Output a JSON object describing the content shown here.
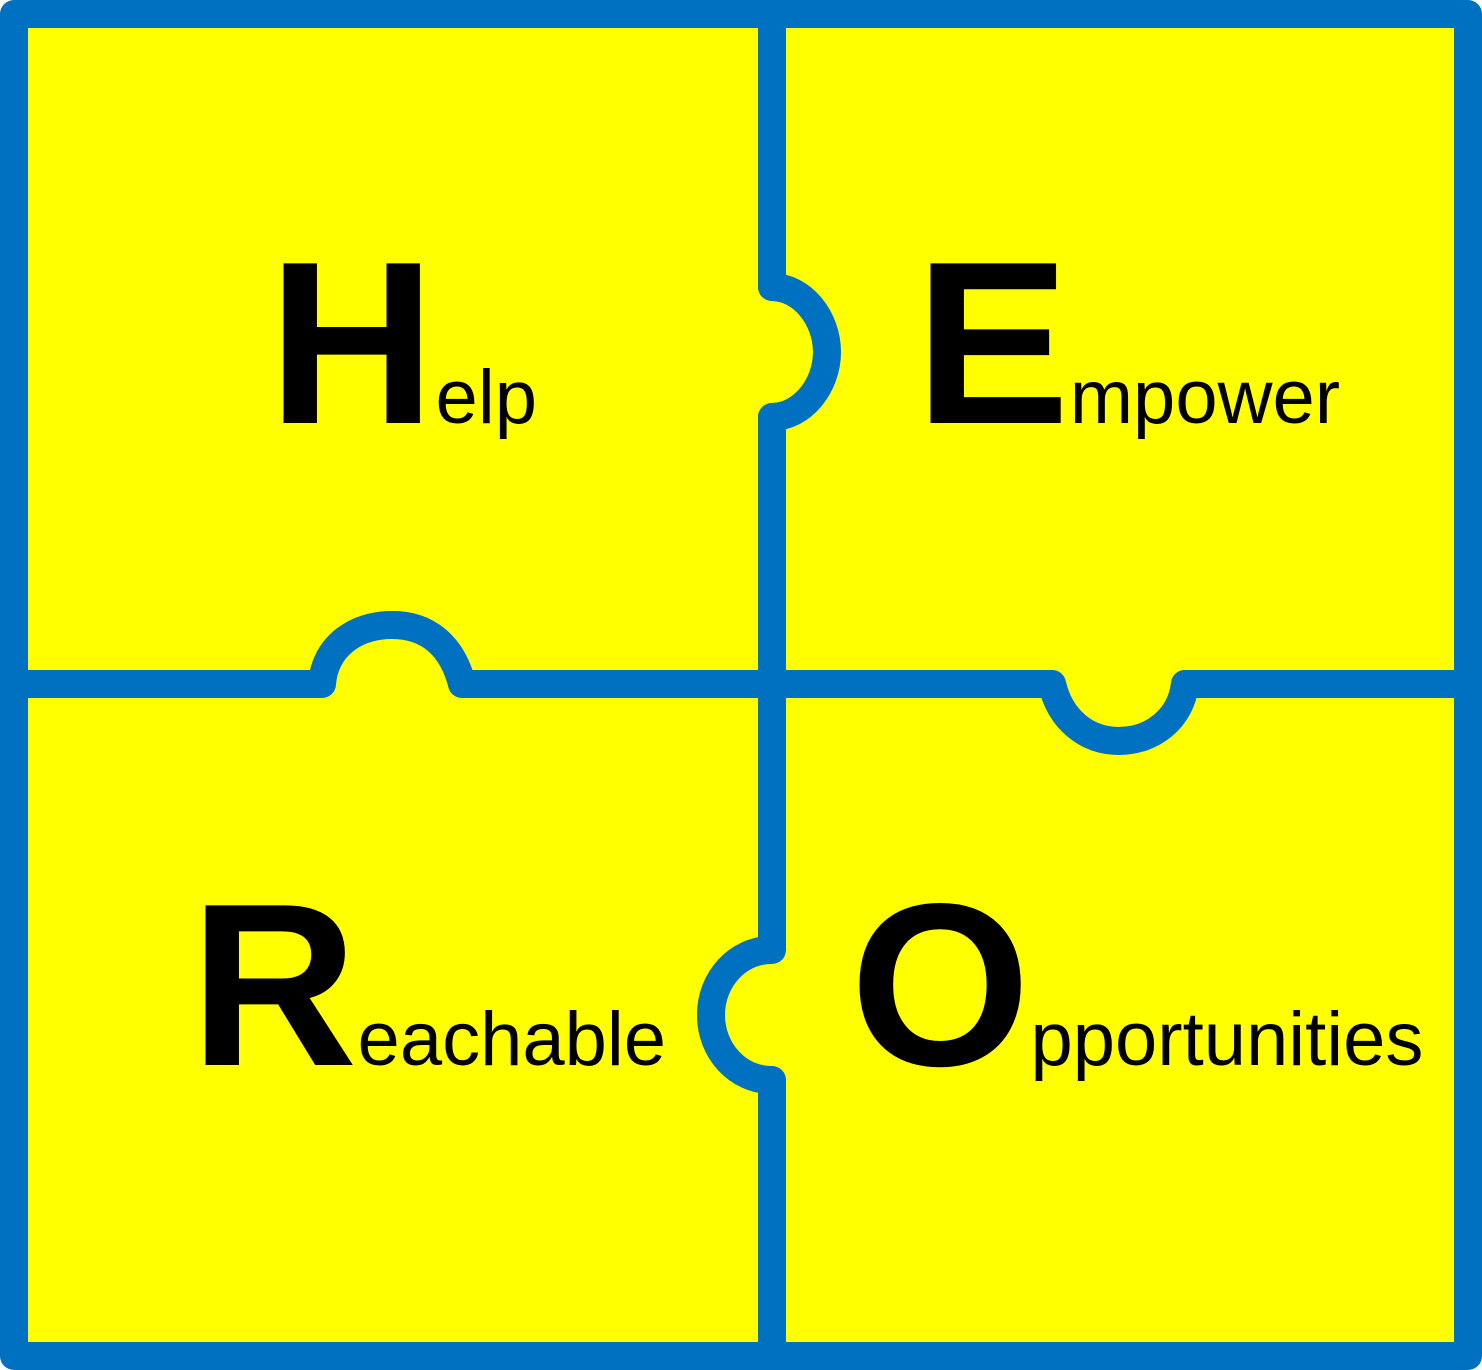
{
  "colors": {
    "fill": "#ffff00",
    "stroke": "#0070c0",
    "text": "#000000"
  },
  "pieces": [
    {
      "id": "help",
      "initial": "H",
      "rest": "elp"
    },
    {
      "id": "empower",
      "initial": "E",
      "rest": "mpower"
    },
    {
      "id": "reachable",
      "initial": "R",
      "rest": "eachable"
    },
    {
      "id": "opportunities",
      "initial": "O",
      "rest": "pportunities"
    }
  ]
}
